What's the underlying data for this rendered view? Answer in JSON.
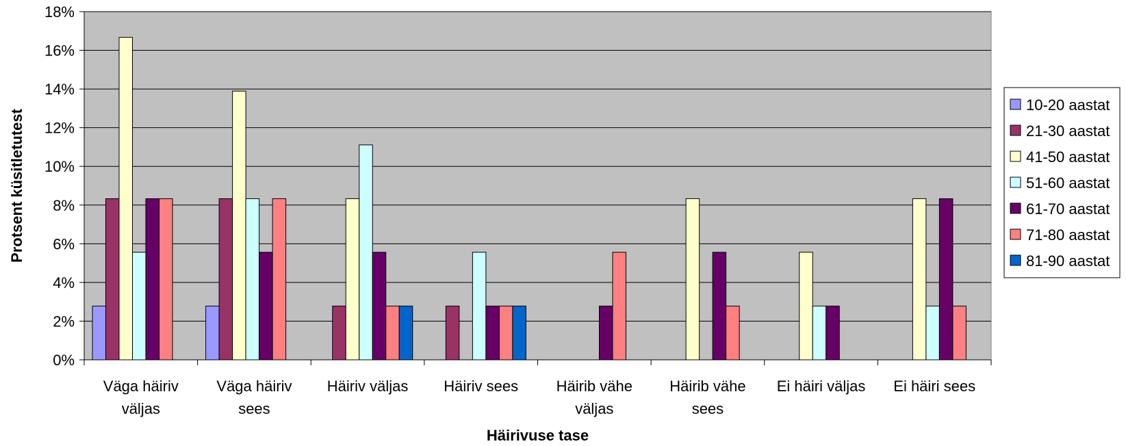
{
  "chart_data": {
    "type": "bar",
    "title": "",
    "xlabel": "Häirivuse tase",
    "ylabel": "Protsent küsitletutest",
    "ylim": [
      0,
      18
    ],
    "y_ticks": [
      "0%",
      "2%",
      "4%",
      "6%",
      "8%",
      "10%",
      "12%",
      "14%",
      "16%",
      "18%"
    ],
    "y_unit": "%",
    "grid": true,
    "legend_position": "right",
    "plot_background": "#C0C0C0",
    "categories": [
      [
        "Väga häiriv",
        "väljas"
      ],
      [
        "Väga häiriv",
        "sees"
      ],
      [
        "Häiriv väljas"
      ],
      [
        "Häiriv sees"
      ],
      [
        "Häirib vähe",
        "väljas"
      ],
      [
        "Häirib vähe",
        "sees"
      ],
      [
        "Ei häiri väljas"
      ],
      [
        "Ei häiri sees"
      ]
    ],
    "series": [
      {
        "name": "10-20 aastat",
        "color": "#9999FF",
        "values": [
          2.78,
          2.78,
          0,
          0,
          0,
          0,
          0,
          0
        ]
      },
      {
        "name": "21-30 aastat",
        "color": "#993366",
        "values": [
          8.33,
          8.33,
          2.78,
          2.78,
          0,
          0,
          0,
          0
        ]
      },
      {
        "name": "41-50 aastat",
        "color": "#FFFFCC",
        "values": [
          16.67,
          13.89,
          8.33,
          0,
          0,
          8.33,
          5.56,
          8.33
        ]
      },
      {
        "name": "51-60 aastat",
        "color": "#CCFFFF",
        "values": [
          5.56,
          8.33,
          11.11,
          5.56,
          0,
          0,
          2.78,
          2.78
        ]
      },
      {
        "name": "61-70 aastat",
        "color": "#660066",
        "values": [
          8.33,
          5.56,
          5.56,
          2.78,
          2.78,
          5.56,
          2.78,
          8.33
        ]
      },
      {
        "name": "71-80 aastat",
        "color": "#FF8080",
        "values": [
          8.33,
          8.33,
          2.78,
          2.78,
          5.56,
          2.78,
          0,
          2.78
        ]
      },
      {
        "name": "81-90 aastat",
        "color": "#0066CC",
        "values": [
          0,
          0,
          2.78,
          2.78,
          0,
          0,
          0,
          0
        ]
      }
    ]
  }
}
